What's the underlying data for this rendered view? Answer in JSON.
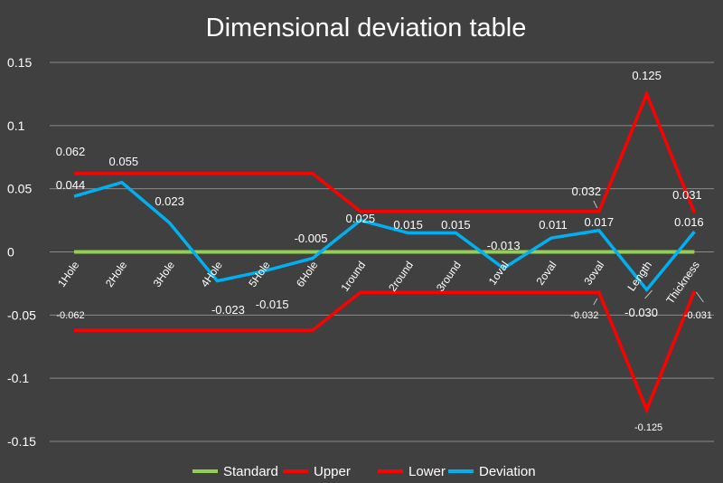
{
  "chart_data": {
    "type": "line",
    "title": "Dimensional deviation table",
    "xlabel": "",
    "ylabel": "",
    "ylim": [
      -0.15,
      0.15
    ],
    "yticks": [
      "0.15",
      "0.1",
      "0.05",
      "0",
      "-0.05",
      "-0.1",
      "-0.15"
    ],
    "ytick_values": [
      0.15,
      0.1,
      0.05,
      0,
      -0.05,
      -0.1,
      -0.15
    ],
    "grid": true,
    "legend_position": "bottom",
    "categories": [
      "1Hole",
      "2Hole",
      "3Hole",
      "4Hole",
      "5Hole",
      "6Hole",
      "1round",
      "2round",
      "3round",
      "1oval",
      "2oval",
      "3oval",
      "Length",
      "Thickness"
    ],
    "series": [
      {
        "name": "Standard",
        "color": "#92d050",
        "values": [
          0,
          0,
          0,
          0,
          0,
          0,
          0,
          0,
          0,
          0,
          0,
          0,
          0,
          0
        ]
      },
      {
        "name": "Upper",
        "color": "#ff0000",
        "values": [
          0.062,
          0.062,
          0.062,
          0.062,
          0.062,
          0.062,
          0.032,
          0.032,
          0.032,
          0.032,
          0.032,
          0.032,
          0.125,
          0.031
        ]
      },
      {
        "name": "Lower",
        "color": "#ff0000",
        "values": [
          -0.062,
          -0.062,
          -0.062,
          -0.062,
          -0.062,
          -0.062,
          -0.032,
          -0.032,
          -0.032,
          -0.032,
          -0.032,
          -0.032,
          -0.125,
          -0.031
        ]
      },
      {
        "name": "Deviation",
        "color": "#00b0f0",
        "values": [
          0.044,
          0.055,
          0.023,
          -0.023,
          -0.015,
          -0.005,
          0.025,
          0.015,
          0.015,
          -0.013,
          0.011,
          0.017,
          -0.03,
          0.016
        ]
      }
    ],
    "data_labels": {
      "upper": [
        "0.062",
        "0.032",
        "0.125",
        "0.031"
      ],
      "lower": [
        "-0.062",
        "-0.032",
        "-0.125",
        "-0.031"
      ],
      "deviation": [
        "0.044",
        "0.055",
        "0.023",
        "-0.023",
        "-0.015",
        "-0.005",
        "0.025",
        "0.015",
        "0.015",
        "-0.013",
        "0.011",
        "0.017",
        "-0.030",
        "0.016"
      ]
    }
  }
}
